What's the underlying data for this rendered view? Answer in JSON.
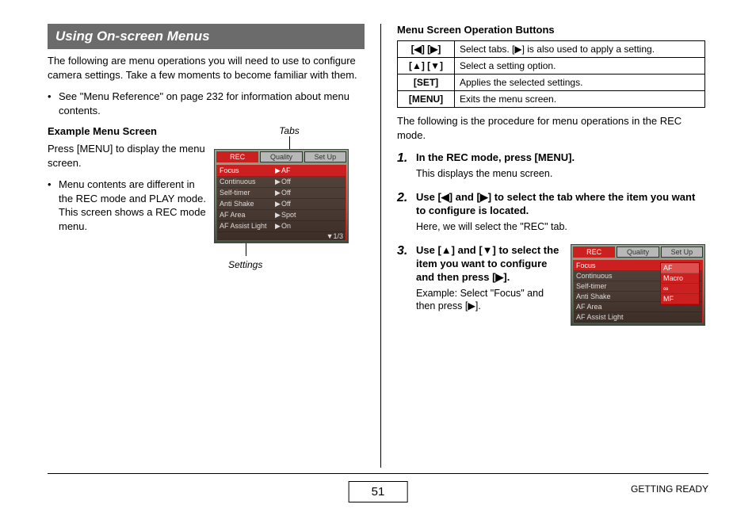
{
  "header": {
    "title": "Using On-screen Menus"
  },
  "left": {
    "intro": "The following are menu operations you will need to use to configure camera settings. Take a few moments to become familiar with them.",
    "bullet": "See \"Menu Reference\" on page 232 for information about menu contents.",
    "example_head": "Example Menu Screen",
    "press_menu": "Press [MENU] to display the menu screen.",
    "bullet2": "Menu contents are different in the REC mode and PLAY mode. This screen shows a REC mode menu.",
    "annot_tabs": "Tabs",
    "annot_settings": "Settings",
    "shot": {
      "tabs": [
        "REC",
        "Quality",
        "Set Up"
      ],
      "rows": [
        {
          "k": "Focus",
          "v": "AF",
          "sel": true,
          "arrow": "▶"
        },
        {
          "k": "Continuous",
          "v": "Off"
        },
        {
          "k": "Self-timer",
          "v": "Off"
        },
        {
          "k": "Anti Shake",
          "v": "Off"
        },
        {
          "k": "AF Area",
          "v": "Spot",
          "arrow": "▶"
        },
        {
          "k": "AF Assist Light",
          "v": "On",
          "arrow": "▶"
        }
      ],
      "page": "▼1/3"
    }
  },
  "right": {
    "table_head": "Menu Screen Operation Buttons",
    "table": [
      {
        "key": "[◀] [▶]",
        "desc": "Select tabs. [▶] is also used to apply a setting."
      },
      {
        "key": "[▲] [▼]",
        "desc": "Select a setting option."
      },
      {
        "key": "[SET]",
        "desc": "Applies the selected settings."
      },
      {
        "key": "[MENU]",
        "desc": "Exits the menu screen."
      }
    ],
    "proc_intro": "The following is the procedure for menu operations in the REC mode.",
    "steps": [
      {
        "n": "1.",
        "title": "In the REC mode, press [MENU].",
        "desc": "This displays the menu screen."
      },
      {
        "n": "2.",
        "title": "Use [◀] and [▶] to select the tab where the item you want to configure is located.",
        "desc": "Here, we will select the \"REC\" tab."
      },
      {
        "n": "3.",
        "title": "Use [▲] and [▼] to select the item you want to configure and then press [▶].",
        "desc": "Example: Select \"Focus\" and then press [▶]."
      }
    ],
    "shot3": {
      "tabs": [
        "REC",
        "Quality",
        "Set Up"
      ],
      "rows": [
        {
          "k": "Focus",
          "sel": true
        },
        {
          "k": "Continuous"
        },
        {
          "k": "Self-timer"
        },
        {
          "k": "Anti Shake"
        },
        {
          "k": "AF Area"
        },
        {
          "k": "AF Assist Light"
        }
      ],
      "submenu": [
        "AF",
        "Macro",
        "∞",
        "MF"
      ]
    }
  },
  "footer": {
    "page": "51",
    "section": "GETTING READY"
  }
}
